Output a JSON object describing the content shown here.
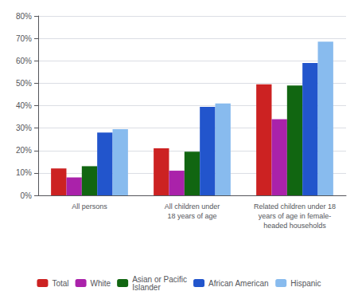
{
  "chart_data": {
    "type": "bar",
    "categories": [
      "All persons",
      "All children under\n18 years of age",
      "Related children under 18\nyears of age in female-\nheaded households"
    ],
    "series": [
      {
        "name": "Total",
        "color": "#CC2222",
        "values": [
          12,
          21,
          49.5
        ]
      },
      {
        "name": "White",
        "color": "#AA22AA",
        "values": [
          8,
          11,
          34
        ]
      },
      {
        "name": "Asian or Pacific\nIslander",
        "color": "#116611",
        "values": [
          13,
          19.5,
          49
        ]
      },
      {
        "name": "African American",
        "color": "#2255CC",
        "values": [
          28,
          39.5,
          59
        ]
      },
      {
        "name": "Hispanic",
        "color": "#88BBEE",
        "values": [
          29.5,
          41,
          68.5
        ]
      }
    ],
    "ylim": [
      0,
      80
    ],
    "yticks": [
      {
        "value": 0,
        "label": "0%"
      },
      {
        "value": 10,
        "label": "10%"
      },
      {
        "value": 20,
        "label": "20%"
      },
      {
        "value": 30,
        "label": "30%"
      },
      {
        "value": 40,
        "label": "40%"
      },
      {
        "value": 50,
        "label": "50%"
      },
      {
        "value": 60,
        "label": "60%"
      },
      {
        "value": 70,
        "label": "70%"
      },
      {
        "value": 80,
        "label": "80%"
      }
    ],
    "grid": true,
    "legend": "bottom"
  }
}
